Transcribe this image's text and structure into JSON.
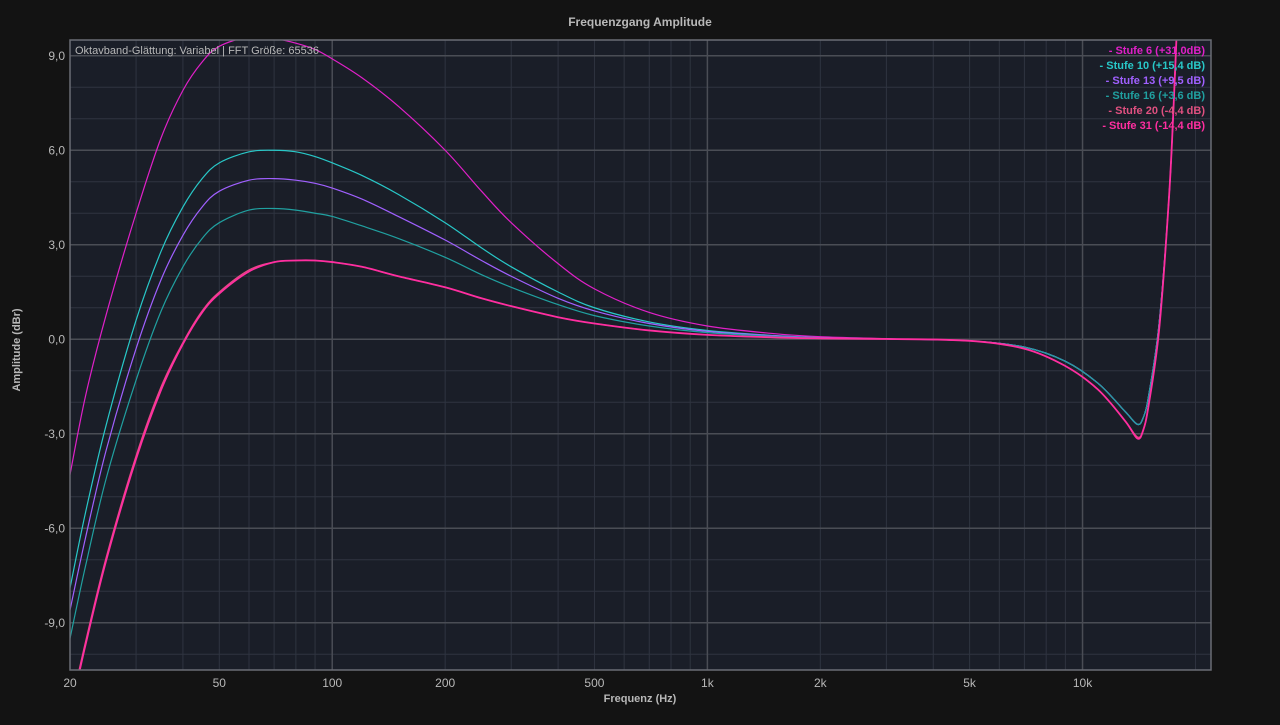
{
  "chart_data": {
    "type": "line",
    "title": "Frequenzgang Amplitude",
    "xlabel": "Frequenz (Hz)",
    "ylabel": "Amplitude (dBr)",
    "info_text": "Oktavband-Glättung: Variabel | FFT Größe: 65536",
    "x_scale": "log",
    "xlim": [
      20,
      22000
    ],
    "ylim": [
      -10.5,
      9.5
    ],
    "x_ticks": [
      {
        "value": 20,
        "label": "20"
      },
      {
        "value": 50,
        "label": "50"
      },
      {
        "value": 100,
        "label": "100"
      },
      {
        "value": 200,
        "label": "200"
      },
      {
        "value": 500,
        "label": "500"
      },
      {
        "value": 1000,
        "label": "1k"
      },
      {
        "value": 2000,
        "label": "2k"
      },
      {
        "value": 5000,
        "label": "5k"
      },
      {
        "value": 10000,
        "label": "10k"
      }
    ],
    "y_ticks": [
      {
        "value": 9,
        "label": "9,0"
      },
      {
        "value": 6,
        "label": "6,0"
      },
      {
        "value": 3,
        "label": "3,0"
      },
      {
        "value": 0,
        "label": "0,0"
      },
      {
        "value": -3,
        "label": "-3,0"
      },
      {
        "value": -6,
        "label": "-6,0"
      },
      {
        "value": -9,
        "label": "-9,0"
      }
    ],
    "major_vlines": [
      100,
      1000,
      10000
    ],
    "grid": true,
    "legend_position": "top-right",
    "series": [
      {
        "name": "- Stufe 6 (+31,0dB)",
        "color": "#e020c8",
        "x": [
          20,
          22,
          25,
          30,
          35,
          40,
          45,
          50,
          60,
          70,
          80,
          90,
          100,
          120,
          150,
          200,
          250,
          300,
          400,
          500,
          700,
          1000,
          1500,
          2000,
          3000,
          5000,
          7000,
          9000,
          11000,
          13000,
          14000,
          14500,
          15000,
          16000,
          17000,
          17500,
          18000
        ],
        "y": [
          -4.3,
          -1.8,
          0.8,
          4.0,
          6.4,
          7.9,
          8.8,
          9.3,
          9.6,
          9.55,
          9.4,
          9.2,
          8.9,
          8.3,
          7.4,
          6.0,
          4.7,
          3.7,
          2.4,
          1.6,
          0.85,
          0.42,
          0.18,
          0.08,
          0.02,
          -0.05,
          -0.25,
          -0.7,
          -1.4,
          -2.3,
          -2.7,
          -2.5,
          -1.8,
          0.5,
          4.5,
          7.5,
          11.0
        ]
      },
      {
        "name": "- Stufe 10 (+15,4 dB)",
        "color": "#28c8c8",
        "x": [
          20,
          22,
          25,
          30,
          35,
          40,
          45,
          50,
          60,
          70,
          80,
          90,
          100,
          120,
          150,
          200,
          250,
          300,
          400,
          500,
          700,
          1000,
          1500,
          2000,
          3000,
          5000,
          7000,
          9000,
          11000,
          13000,
          14000,
          14500,
          15000,
          16000,
          17000,
          17500,
          18000
        ],
        "y": [
          -7.9,
          -5.5,
          -2.7,
          0.6,
          2.8,
          4.2,
          5.1,
          5.6,
          5.95,
          6.0,
          5.95,
          5.8,
          5.6,
          5.2,
          4.6,
          3.7,
          2.9,
          2.3,
          1.5,
          1.0,
          0.55,
          0.28,
          0.12,
          0.05,
          0.01,
          -0.05,
          -0.25,
          -0.7,
          -1.4,
          -2.3,
          -2.7,
          -2.5,
          -1.8,
          0.5,
          4.5,
          7.5,
          11.0
        ]
      },
      {
        "name": "- Stufe 13 (+9,5 dB)",
        "color": "#a060ff",
        "x": [
          20,
          22,
          25,
          30,
          35,
          40,
          45,
          50,
          60,
          70,
          80,
          90,
          100,
          120,
          150,
          200,
          250,
          300,
          400,
          500,
          700,
          1000,
          1500,
          2000,
          3000,
          5000,
          7000,
          9000,
          11000,
          13000,
          14000,
          14500,
          15000,
          16000,
          17000,
          17500,
          18000
        ],
        "y": [
          -8.6,
          -6.3,
          -3.5,
          -0.3,
          1.9,
          3.3,
          4.2,
          4.7,
          5.05,
          5.1,
          5.05,
          4.95,
          4.8,
          4.45,
          3.9,
          3.15,
          2.5,
          2.0,
          1.3,
          0.9,
          0.5,
          0.25,
          0.11,
          0.05,
          0.01,
          -0.05,
          -0.25,
          -0.7,
          -1.4,
          -2.3,
          -2.7,
          -2.5,
          -1.8,
          0.5,
          4.5,
          7.5,
          11.0
        ]
      },
      {
        "name": "- Stufe 16 (+3,6 dB)",
        "color": "#20a0a0",
        "x": [
          20,
          22,
          25,
          30,
          35,
          40,
          45,
          50,
          60,
          70,
          80,
          90,
          100,
          120,
          150,
          200,
          250,
          300,
          400,
          500,
          700,
          1000,
          1500,
          2000,
          3000,
          5000,
          7000,
          9000,
          11000,
          13000,
          14000,
          14500,
          15000,
          16000,
          17000,
          17500,
          18000
        ],
        "y": [
          -9.5,
          -7.2,
          -4.4,
          -1.3,
          0.9,
          2.3,
          3.2,
          3.7,
          4.1,
          4.15,
          4.1,
          4.0,
          3.9,
          3.6,
          3.2,
          2.6,
          2.05,
          1.65,
          1.1,
          0.75,
          0.42,
          0.21,
          0.09,
          0.04,
          0.01,
          -0.05,
          -0.25,
          -0.7,
          -1.4,
          -2.3,
          -2.7,
          -2.5,
          -1.8,
          0.5,
          4.5,
          7.5,
          11.0
        ]
      },
      {
        "name": "- Stufe 20 (-4,4 dB)",
        "color": "#e05080",
        "x": [
          20,
          22,
          25,
          30,
          35,
          40,
          45,
          50,
          60,
          70,
          80,
          90,
          100,
          120,
          150,
          200,
          250,
          300,
          400,
          500,
          700,
          1000,
          1500,
          2000,
          3000,
          5000,
          7000,
          9000,
          11000,
          13000,
          14000,
          14500,
          15000,
          16000,
          17000,
          17500,
          18000
        ],
        "y": [
          -11.8,
          -9.6,
          -6.9,
          -3.7,
          -1.5,
          -0.1,
          0.9,
          1.5,
          2.2,
          2.45,
          2.5,
          2.5,
          2.45,
          2.3,
          2.0,
          1.65,
          1.3,
          1.05,
          0.7,
          0.5,
          0.28,
          0.14,
          0.06,
          0.03,
          0.01,
          -0.05,
          -0.3,
          -0.85,
          -1.6,
          -2.6,
          -3.1,
          -2.9,
          -2.1,
          0.3,
          4.5,
          7.5,
          11.0
        ]
      },
      {
        "name": "- Stufe 31 (-14,4 dB)",
        "color": "#ff2ea0",
        "x": [
          20,
          22,
          25,
          30,
          35,
          40,
          45,
          50,
          60,
          70,
          80,
          90,
          100,
          120,
          150,
          200,
          250,
          300,
          400,
          500,
          700,
          1000,
          1500,
          2000,
          3000,
          5000,
          7000,
          9000,
          11000,
          13000,
          14000,
          14500,
          15000,
          16000,
          17000,
          17500,
          18000
        ],
        "y": [
          -11.9,
          -9.7,
          -7.0,
          -3.8,
          -1.6,
          -0.15,
          0.85,
          1.45,
          2.15,
          2.45,
          2.5,
          2.5,
          2.45,
          2.3,
          2.0,
          1.65,
          1.3,
          1.05,
          0.7,
          0.5,
          0.28,
          0.14,
          0.06,
          0.03,
          0.01,
          -0.05,
          -0.3,
          -0.85,
          -1.6,
          -2.6,
          -3.15,
          -2.9,
          -2.1,
          0.3,
          4.5,
          7.5,
          11.0
        ]
      }
    ]
  },
  "colors": {
    "page_background": "#131313",
    "plot_background": "#1a1e28",
    "major_grid": "#4a4d55",
    "minor_grid": "#2f3440",
    "text": "#b8b8b8"
  }
}
